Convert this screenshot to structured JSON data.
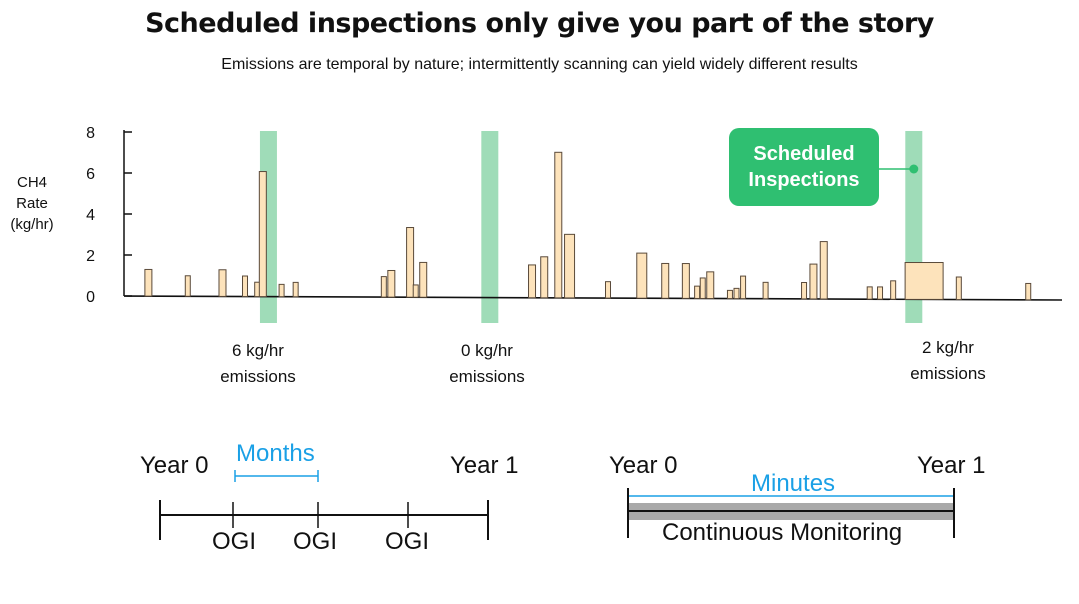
{
  "title": "Scheduled inspections only give you part of the story",
  "subtitle": "Emissions are temporal by nature; intermittently scanning can yield widely different results",
  "colors": {
    "bar_fill": "#fde3bb",
    "bar_stroke": "#5a4a3a",
    "inspection_band": "#9fdcb8",
    "callout": "#2fbf71",
    "axis": "#111111",
    "blue": "#1aa0e6",
    "monitor_bar": "#a9a9a9"
  },
  "chart_data": {
    "type": "bar",
    "ylabel": [
      "CH4",
      "Rate",
      "(kg/hr)"
    ],
    "ylim": [
      0,
      8
    ],
    "yticks": [
      "0",
      "2",
      "4",
      "6",
      "8"
    ],
    "x_range": [
      0,
      100
    ],
    "bars": [
      {
        "x": 2.6,
        "value": 1.3
      },
      {
        "x": 6.8,
        "value": 1.0
      },
      {
        "x": 10.5,
        "value": 1.3
      },
      {
        "x": 12.9,
        "value": 1.0
      },
      {
        "x": 14.2,
        "value": 0.7
      },
      {
        "x": 14.8,
        "value": 6.1
      },
      {
        "x": 16.8,
        "value": 0.6
      },
      {
        "x": 18.3,
        "value": 0.7
      },
      {
        "x": 27.7,
        "value": 1.0
      },
      {
        "x": 28.5,
        "value": 1.3
      },
      {
        "x": 30.5,
        "value": 3.4
      },
      {
        "x": 31.1,
        "value": 0.6
      },
      {
        "x": 31.9,
        "value": 1.7
      },
      {
        "x": 43.5,
        "value": 1.6
      },
      {
        "x": 44.8,
        "value": 2.0
      },
      {
        "x": 46.3,
        "value": 7.1
      },
      {
        "x": 47.5,
        "value": 3.1
      },
      {
        "x": 51.6,
        "value": 0.8
      },
      {
        "x": 55.2,
        "value": 2.2
      },
      {
        "x": 57.7,
        "value": 1.7
      },
      {
        "x": 59.9,
        "value": 1.7
      },
      {
        "x": 61.1,
        "value": 0.6
      },
      {
        "x": 61.7,
        "value": 1.0
      },
      {
        "x": 62.5,
        "value": 1.3
      },
      {
        "x": 64.6,
        "value": 0.4
      },
      {
        "x": 65.3,
        "value": 0.5
      },
      {
        "x": 66.0,
        "value": 1.1
      },
      {
        "x": 68.4,
        "value": 0.8
      },
      {
        "x": 72.5,
        "value": 0.8
      },
      {
        "x": 73.5,
        "value": 1.7
      },
      {
        "x": 74.6,
        "value": 2.8
      },
      {
        "x": 79.5,
        "value": 0.6
      },
      {
        "x": 80.6,
        "value": 0.6
      },
      {
        "x": 82.0,
        "value": 0.9
      },
      {
        "x": 85.3,
        "value": 1.8
      },
      {
        "x": 89.0,
        "value": 1.1
      },
      {
        "x": 96.4,
        "value": 0.8
      }
    ],
    "inspections": [
      {
        "x": 15.4,
        "label": [
          "6 kg/hr",
          "emissions"
        ]
      },
      {
        "x": 39.0,
        "label": [
          "0 kg/hr",
          "emissions"
        ]
      },
      {
        "x": 84.2,
        "label": [
          "2 kg/hr",
          "emissions"
        ]
      }
    ],
    "callout": [
      "Scheduled",
      "Inspections"
    ]
  },
  "timeline_left": {
    "start": "Year 0",
    "end": "Year 1",
    "interval": "Months",
    "markers": [
      "OGI",
      "OGI",
      "OGI"
    ]
  },
  "timeline_right": {
    "start": "Year 0",
    "end": "Year 1",
    "interval": "Minutes",
    "label": "Continuous Monitoring"
  }
}
